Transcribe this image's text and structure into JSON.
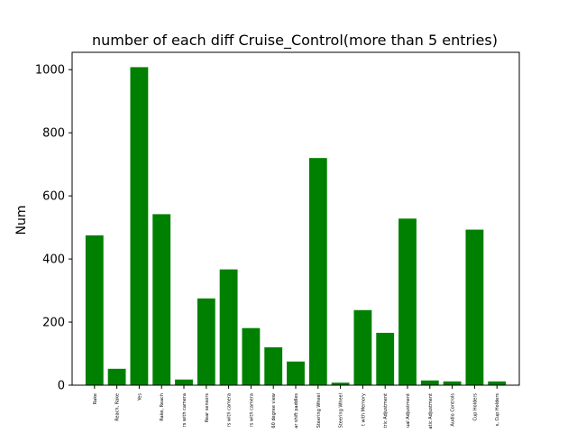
{
  "chart_data": {
    "type": "bar",
    "title": "number of each diff Cruise_Control(more than 5 entries)",
    "xlabel": "",
    "ylabel": "Num",
    "ylim": [
      0,
      1055
    ],
    "yticks": [
      0,
      200,
      400,
      600,
      800,
      1000
    ],
    "bar_color": "#008000",
    "categories": [
      "Rake",
      "Reach, Rake",
      "Yes",
      "Rake, Reach",
      "rs with camera",
      "Rear sensors",
      "rs with camera",
      "rs with camera",
      "60 degree view",
      "ar shift paddles",
      "Steering Wheel",
      "Steering Wheel",
      "t with Memory",
      "tric Adjustment",
      "ual Adjustment",
      "atic Adjustment",
      "Audio Controls",
      "Cup Holders",
      "s, Cup Holders"
    ],
    "values": [
      475,
      52,
      1008,
      542,
      18,
      275,
      367,
      181,
      120,
      75,
      720,
      8,
      238,
      166,
      528,
      15,
      12,
      493,
      12
    ]
  }
}
